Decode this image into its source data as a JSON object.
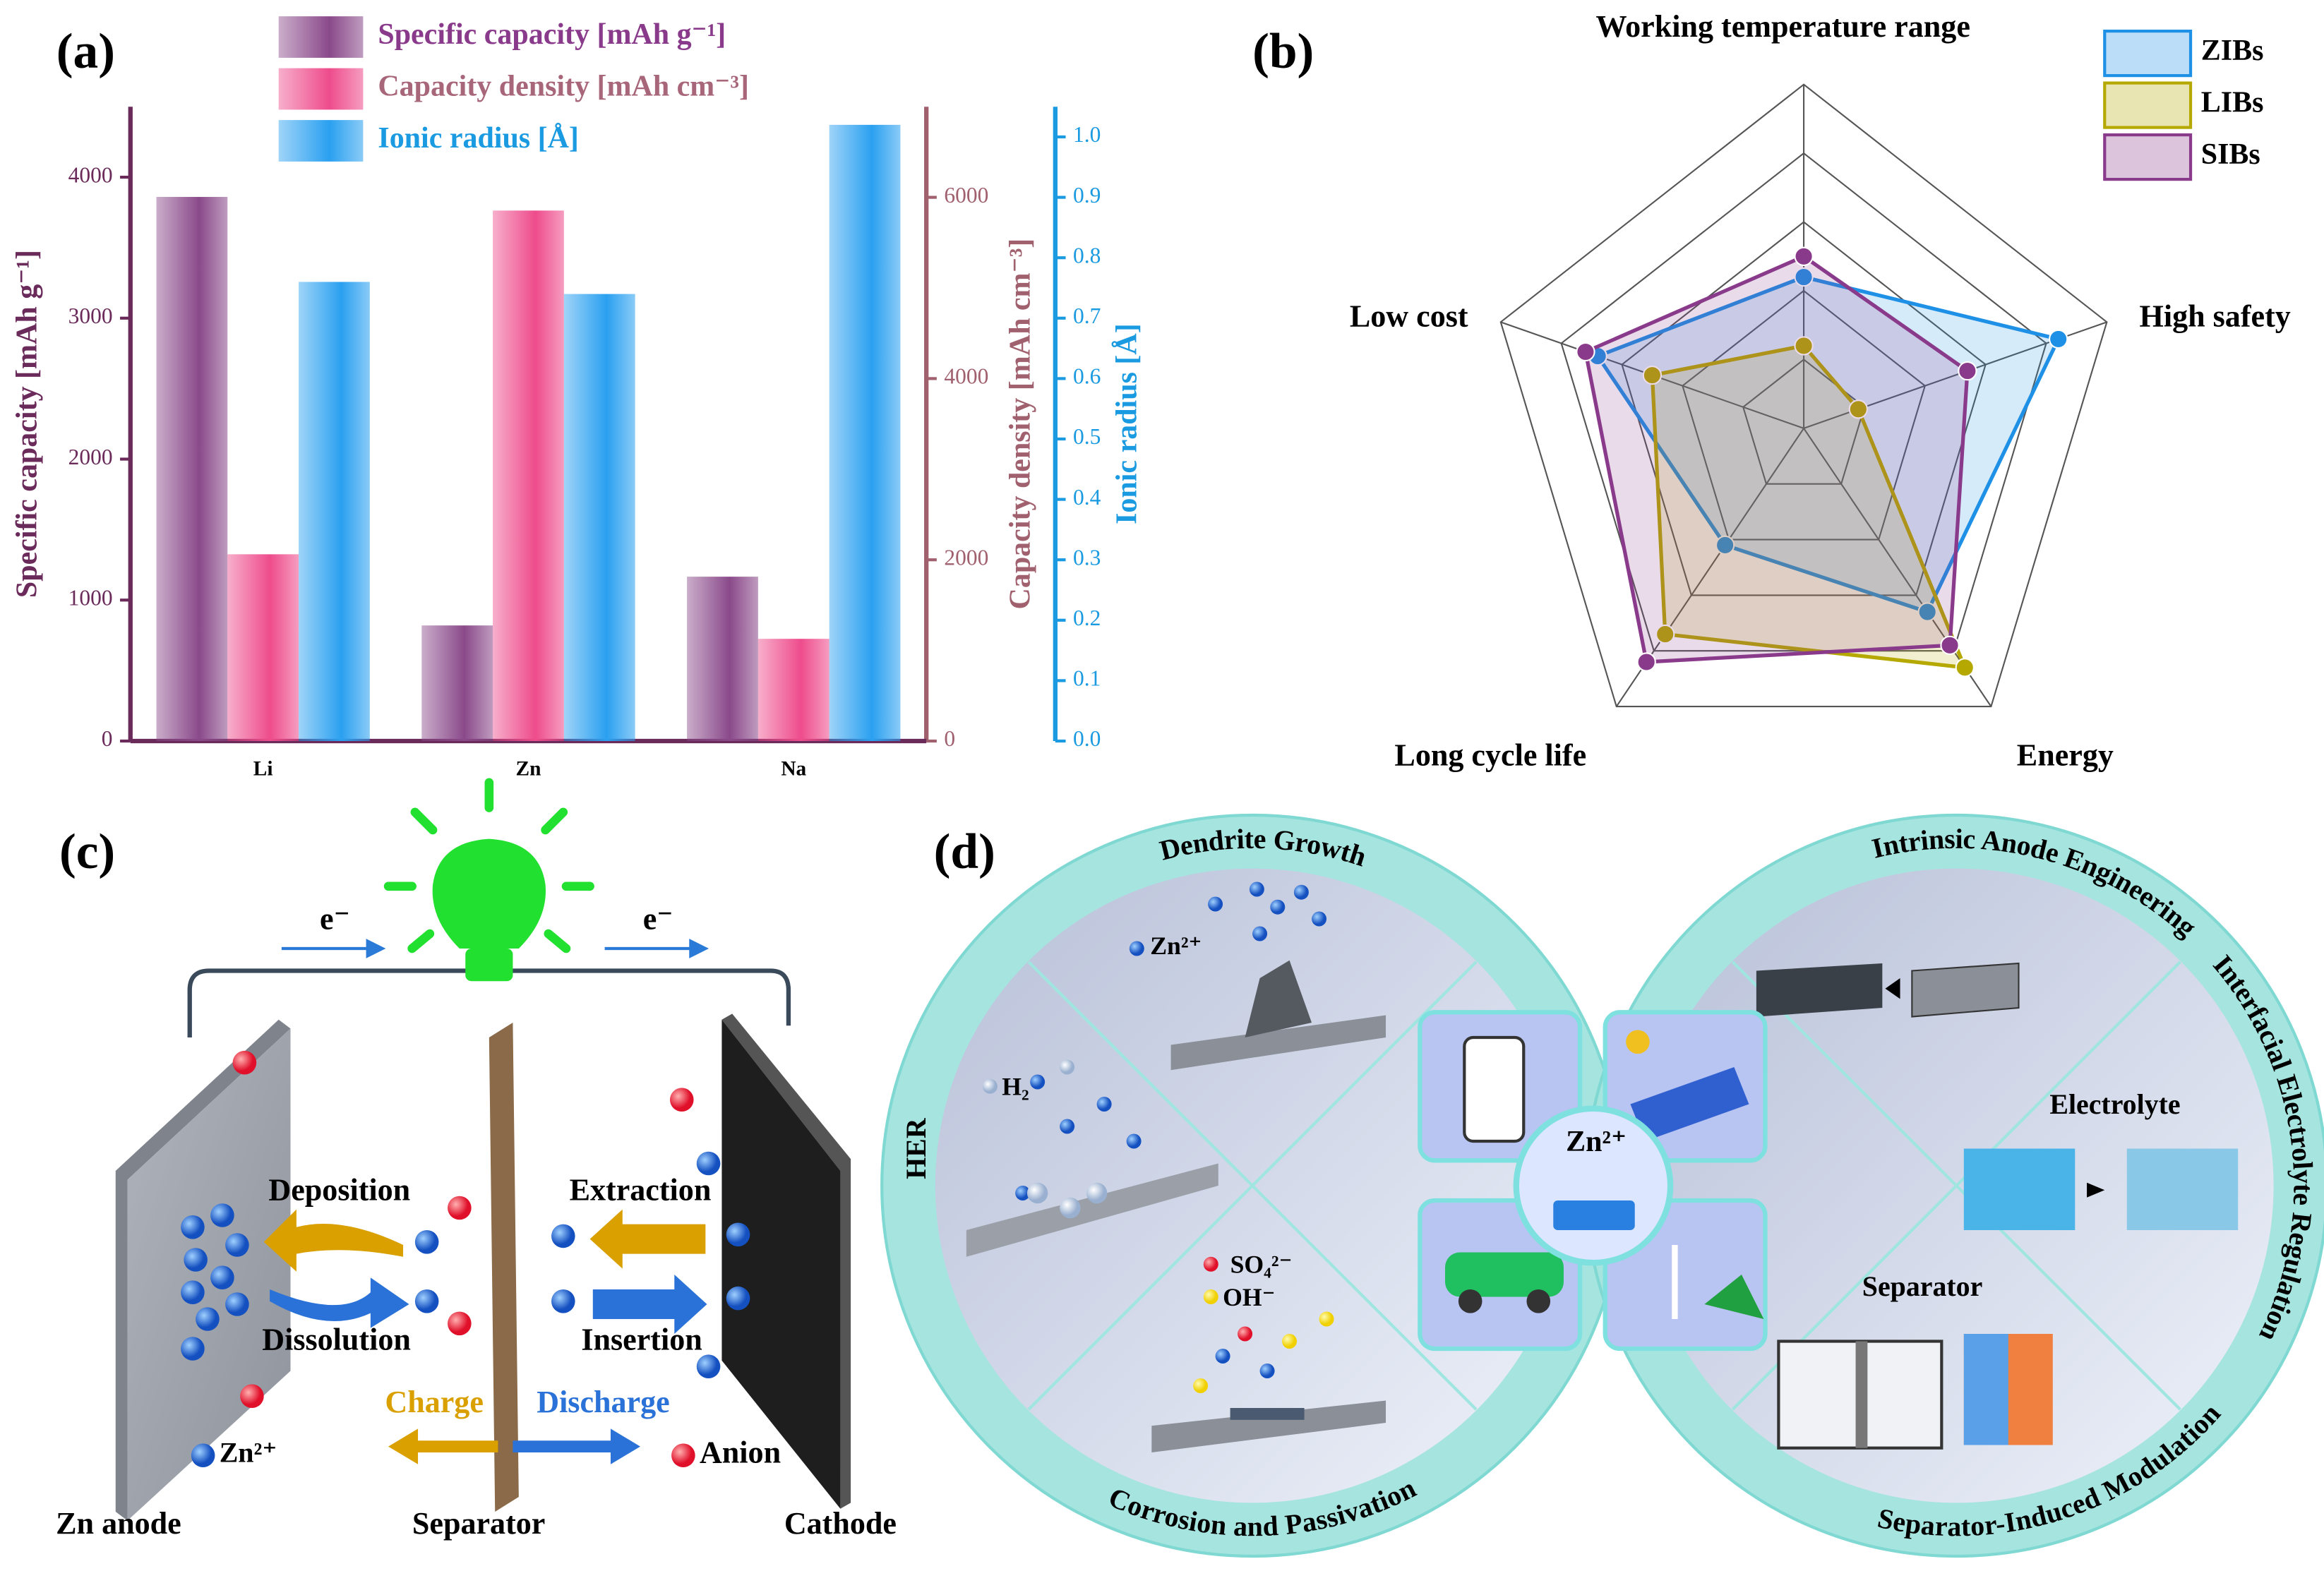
{
  "chart_data": [
    {
      "type": "bar",
      "panel_label": "(a)",
      "categories": [
        "Li",
        "Zn",
        "Na"
      ],
      "series": [
        {
          "name": "Specific capacity [mAh g⁻¹]",
          "color": "#8a4a8a",
          "text_color": "#8a3a8a",
          "values": [
            3860,
            820,
            1166
          ],
          "axis": "y"
        },
        {
          "name": "Capacity density [mAh cm⁻³]",
          "color": "#ee4c8c",
          "text_color": "#a8667a",
          "values": [
            2061,
            5854,
            1128
          ],
          "axis": "y2"
        },
        {
          "name": "Ionic radius [Å]",
          "color": "#2aa0f0",
          "text_color": "#1a9ae0",
          "values": [
            0.76,
            0.74,
            1.02
          ],
          "axis": "y3"
        }
      ],
      "ylabel": "Specific capacity [mAh g⁻¹]",
      "ylim": [
        0,
        4500
      ],
      "yticks": [
        0,
        1000,
        2000,
        3000,
        4000
      ],
      "y2label": "Capacity density [mAh cm⁻³]",
      "y2lim": [
        0,
        7000
      ],
      "y2ticks": [
        0,
        2000,
        4000,
        6000
      ],
      "y3label": "Ionic radius [Å]",
      "y3lim": [
        0,
        1.05
      ],
      "y3ticks": [
        {
          "value": 0,
          "label": "0.0"
        },
        0.1,
        0.2,
        0.3,
        0.4,
        0.5,
        0.6,
        0.7,
        0.8,
        0.9,
        {
          "value": 1,
          "label": "1.0"
        }
      ],
      "legend": "upper left"
    },
    {
      "type": "radar",
      "panel_label": "(b)",
      "axes": [
        "Working temperature range",
        "High safety",
        "Energy",
        "Long cycle life",
        "Low cost"
      ],
      "rlim": [
        0,
        5
      ],
      "rticks": [
        1,
        2,
        3,
        4,
        5
      ],
      "series": [
        {
          "name": "ZIBs",
          "color": "#1e90e6",
          "values": [
            2.2,
            4.2,
            3.3,
            2.1,
            3.4
          ]
        },
        {
          "name": "LIBs",
          "color": "#b5a800",
          "values": [
            1.2,
            0.9,
            4.3,
            3.7,
            2.5
          ]
        },
        {
          "name": "SIBs",
          "color": "#8a3a8a",
          "values": [
            2.5,
            2.7,
            3.9,
            4.2,
            3.6
          ]
        }
      ],
      "legend": "upper right"
    }
  ],
  "panel_c": {
    "label": "(c)",
    "electron_left": "e⁻",
    "electron_right": "e⁻",
    "deposition": "Deposition",
    "dissolution": "Dissolution",
    "extraction": "Extraction",
    "insertion": "Insertion",
    "charge": "Charge",
    "discharge": "Discharge",
    "zn_ion": "Zn²⁺",
    "anion": "Anion",
    "anode": "Zn anode",
    "separator": "Separator",
    "cathode": "Cathode"
  },
  "panel_d": {
    "label": "(d)",
    "dendrite": "Dendrite Growth",
    "her": "HER",
    "corrosion": "Corrosion and Passivation",
    "anode_eng": "Intrinsic Anode Engineering",
    "electrolyte_reg": "Interfacial Electrolyte Regulation",
    "separator_mod": "Separator-Induced Modulation",
    "zn_ion": "Zn²⁺",
    "h2": "H₂",
    "so4": "SO₄²⁻",
    "oh": "OH⁻",
    "center": "Zn²⁺",
    "electrolyte": "Electrolyte",
    "separator": "Separator"
  }
}
